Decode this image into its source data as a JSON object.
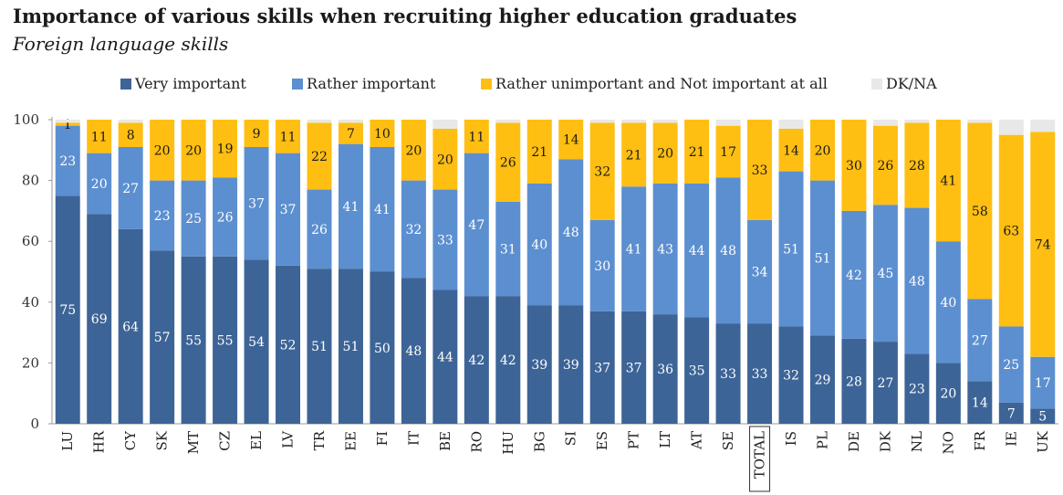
{
  "title": "Importance of various skills when recruiting higher education graduates",
  "subtitle": "Foreign language skills",
  "colors": {
    "very": "#3d6497",
    "rather": "#5c8fd0",
    "unimportant": "#ffbe12",
    "dk": "#e8e8e8"
  },
  "chart_data": {
    "type": "bar",
    "stacked": true,
    "ylim": [
      0,
      100
    ],
    "yticks": [
      0,
      20,
      40,
      60,
      80,
      100
    ],
    "legend_position": "top",
    "highlight_category": "TOTAL",
    "categories": [
      "LU",
      "HR",
      "CY",
      "SK",
      "MT",
      "CZ",
      "EL",
      "LV",
      "TR",
      "EE",
      "FI",
      "IT",
      "BE",
      "RO",
      "HU",
      "BG",
      "SI",
      "ES",
      "PT",
      "LT",
      "AT",
      "SE",
      "TOTAL",
      "IS",
      "PL",
      "DE",
      "DK",
      "NL",
      "NO",
      "FR",
      "IE",
      "UK"
    ],
    "series": [
      {
        "name": "Very important",
        "values": [
          75,
          69,
          64,
          57,
          55,
          55,
          54,
          52,
          51,
          51,
          50,
          48,
          44,
          42,
          42,
          39,
          39,
          37,
          37,
          36,
          35,
          33,
          33,
          32,
          29,
          28,
          27,
          23,
          20,
          14,
          7,
          5
        ]
      },
      {
        "name": "Rather important",
        "values": [
          23,
          20,
          27,
          23,
          25,
          26,
          37,
          37,
          26,
          41,
          41,
          32,
          33,
          47,
          31,
          40,
          48,
          30,
          41,
          43,
          44,
          48,
          34,
          51,
          51,
          42,
          45,
          48,
          40,
          27,
          25,
          17
        ]
      },
      {
        "name": "Rather unimportant and Not important at all",
        "values": [
          1,
          11,
          8,
          20,
          20,
          19,
          9,
          11,
          22,
          7,
          10,
          20,
          20,
          11,
          26,
          21,
          14,
          32,
          21,
          20,
          21,
          17,
          33,
          14,
          20,
          30,
          26,
          28,
          41,
          58,
          63,
          74
        ]
      },
      {
        "name": "DK/NA",
        "values": [
          1,
          0,
          1,
          0,
          0,
          0,
          0,
          0,
          1,
          1,
          0,
          0,
          3,
          0,
          1,
          0,
          0,
          1,
          1,
          1,
          0,
          2,
          0,
          3,
          0,
          0,
          2,
          1,
          0,
          1,
          5,
          4
        ]
      }
    ]
  }
}
